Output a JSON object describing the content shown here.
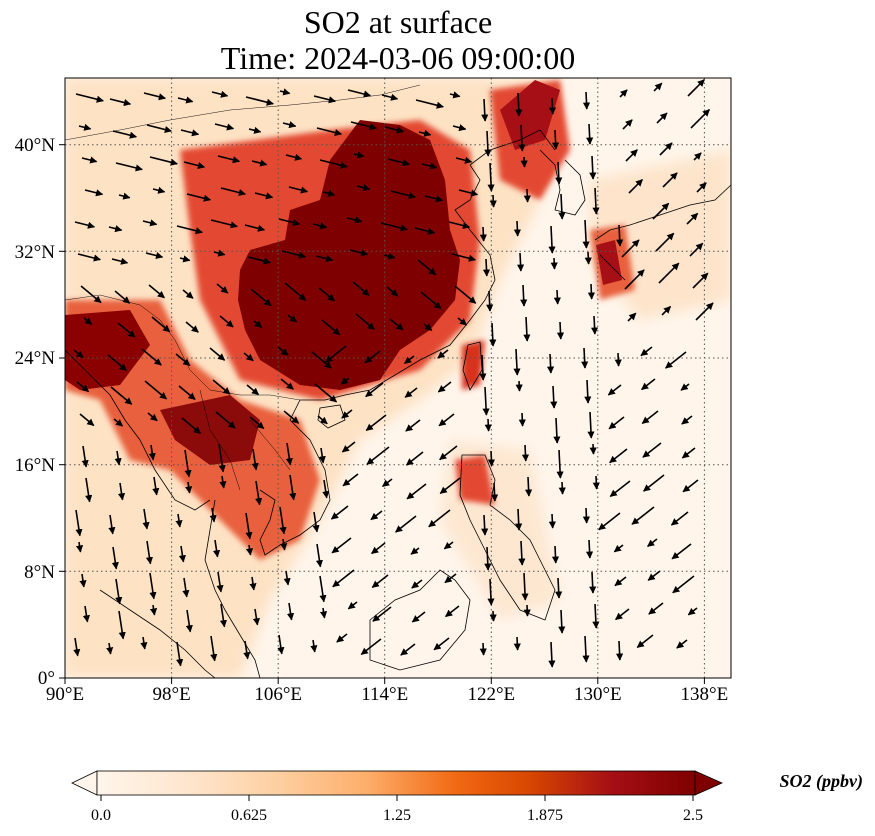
{
  "title": {
    "line1": "SO2 at surface",
    "line2": "Time: 2024-03-06 09:00:00"
  },
  "map": {
    "type": "geographic-contour-with-vectors",
    "projection": "PlateCarree",
    "lon_range": [
      90,
      140
    ],
    "lat_range": [
      0,
      45
    ],
    "lon_ticks": [
      "90°E",
      "98°E",
      "106°E",
      "114°E",
      "122°E",
      "130°E",
      "138°E"
    ],
    "lat_ticks": [
      "0°",
      "8°N",
      "16°N",
      "24°N",
      "32°N",
      "40°N"
    ],
    "gridlines": true,
    "background_color": "#fff5eb"
  },
  "colorbar": {
    "title": "SO2 (ppbv)",
    "min": 0.0,
    "max": 2.5,
    "ticks": [
      "0.0",
      "0.625",
      "1.25",
      "1.875",
      "2.5"
    ],
    "extend": "both",
    "colormap": "OrRd",
    "colors": [
      "#fff5eb",
      "#fee6ce",
      "#fdd0a2",
      "#fdae6b",
      "#f16913",
      "#d94801",
      "#a50f15",
      "#7f0000"
    ]
  }
}
